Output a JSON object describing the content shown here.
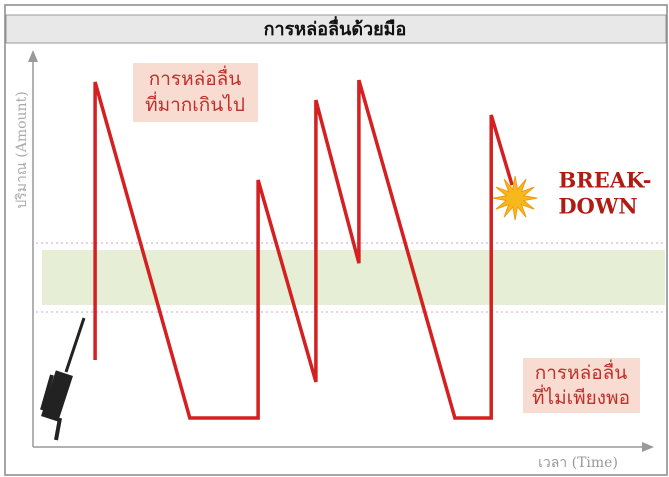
{
  "chart_data": {
    "type": "line",
    "title": "การหล่อลื่นด้วยมือ",
    "y_label": "ปริมาณ (Amount)",
    "x_label": "เวลา (Time)",
    "x": [
      10.1,
      10.1,
      25.5,
      36.6,
      36.6,
      46.0,
      46.0,
      53.0,
      53.0,
      68.6,
      74.5,
      74.5,
      77.9
    ],
    "values": [
      22.2,
      93.1,
      7.4,
      7.4,
      68.1,
      16.6,
      88.5,
      46.9,
      93.6,
      7.4,
      7.4,
      84.7,
      66.8
    ],
    "color": "#d42020",
    "xlim": [
      0,
      100
    ],
    "ylim": [
      0,
      100
    ],
    "annotations": [
      {
        "lines": [
          "การหล่อลื่น",
          "ที่มากเกินไป"
        ]
      },
      {
        "lines": [
          "การหล่อลื่น",
          "ที่ไม่เพียงพอ"
        ]
      },
      {
        "lines": [
          "BREAK-",
          "DOWN"
        ]
      }
    ]
  }
}
